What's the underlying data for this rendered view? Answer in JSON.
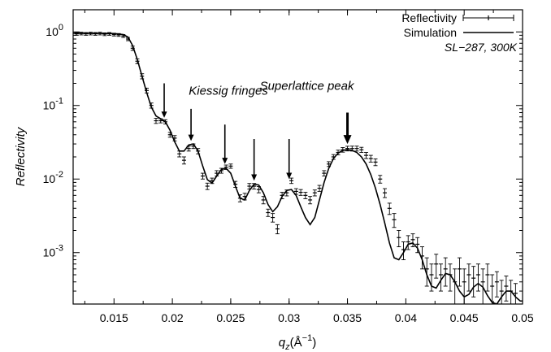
{
  "chart_data": {
    "type": "scatter",
    "xlabel": "q",
    "xlabel_sub": "z",
    "xlabel_unit": "(Å",
    "xlabel_unit_sup": "−1",
    "xlabel_unit_close": ")",
    "ylabel": "Reflectivity",
    "xlim": [
      0.0115,
      0.05
    ],
    "ylim": [
      0.0002,
      2
    ],
    "yscale": "log",
    "x_ticks": [
      "0.015",
      "0.02",
      "0.025",
      "0.03",
      "0.035",
      "0.04",
      "0.045",
      "0.05"
    ],
    "x_tick_values": [
      0.015,
      0.02,
      0.025,
      0.03,
      0.035,
      0.04,
      0.045,
      0.05
    ],
    "y_ticks": [
      {
        "base": "10",
        "exp": "0",
        "value": 1
      },
      {
        "base": "10",
        "exp": "-1",
        "value": 0.1
      },
      {
        "base": "10",
        "exp": "-2",
        "value": 0.01
      },
      {
        "base": "10",
        "exp": "-3",
        "value": 0.001
      }
    ],
    "legend": {
      "placement": "top-right",
      "entries": [
        {
          "label": "Reflectivity",
          "style": "points-errorbars"
        },
        {
          "label": "Simulation",
          "style": "line"
        }
      ],
      "note": "SL−287, 300K"
    },
    "annotations": {
      "superlattice": {
        "text": "Superlattice peak",
        "arrow_x": 0.035,
        "arrow_top": 0.08,
        "arrow_bottom": 0.03
      },
      "kiessig": {
        "text": "Kiessig fringes",
        "arrows": [
          {
            "x": 0.0193,
            "top": 0.2,
            "bottom": 0.068
          },
          {
            "x": 0.0216,
            "top": 0.09,
            "bottom": 0.033
          },
          {
            "x": 0.0245,
            "top": 0.055,
            "bottom": 0.016
          },
          {
            "x": 0.027,
            "top": 0.035,
            "bottom": 0.0095
          },
          {
            "x": 0.03,
            "top": 0.035,
            "bottom": 0.01
          }
        ]
      }
    },
    "series": [
      {
        "name": "Reflectivity",
        "points": [
          [
            0.0118,
            0.94,
            0.04
          ],
          [
            0.0122,
            0.95,
            0.04
          ],
          [
            0.0126,
            0.94,
            0.04
          ],
          [
            0.013,
            0.95,
            0.04
          ],
          [
            0.0134,
            0.94,
            0.04
          ],
          [
            0.0138,
            0.95,
            0.04
          ],
          [
            0.0142,
            0.93,
            0.04
          ],
          [
            0.0146,
            0.94,
            0.04
          ],
          [
            0.015,
            0.92,
            0.04
          ],
          [
            0.0154,
            0.91,
            0.04
          ],
          [
            0.0158,
            0.88,
            0.04
          ],
          [
            0.0162,
            0.8,
            0.04
          ],
          [
            0.0166,
            0.6,
            0.04
          ],
          [
            0.017,
            0.4,
            0.03
          ],
          [
            0.0174,
            0.25,
            0.02
          ],
          [
            0.0178,
            0.16,
            0.012
          ],
          [
            0.0182,
            0.1,
            0.008
          ],
          [
            0.0186,
            0.062,
            0.005
          ],
          [
            0.019,
            0.062,
            0.004
          ],
          [
            0.0194,
            0.06,
            0.004
          ],
          [
            0.0198,
            0.04,
            0.003
          ],
          [
            0.0202,
            0.036,
            0.003
          ],
          [
            0.0206,
            0.022,
            0.002
          ],
          [
            0.021,
            0.018,
            0.002
          ],
          [
            0.0214,
            0.026,
            0.002
          ],
          [
            0.0218,
            0.028,
            0.002
          ],
          [
            0.0222,
            0.024,
            0.002
          ],
          [
            0.0226,
            0.011,
            0.001
          ],
          [
            0.023,
            0.008,
            0.0008
          ],
          [
            0.0234,
            0.0095,
            0.0008
          ],
          [
            0.0238,
            0.012,
            0.001
          ],
          [
            0.0242,
            0.013,
            0.001
          ],
          [
            0.0246,
            0.0145,
            0.001
          ],
          [
            0.025,
            0.015,
            0.001
          ],
          [
            0.0254,
            0.0085,
            0.0008
          ],
          [
            0.0258,
            0.0055,
            0.0006
          ],
          [
            0.0262,
            0.0058,
            0.0006
          ],
          [
            0.0266,
            0.008,
            0.0007
          ],
          [
            0.027,
            0.008,
            0.0007
          ],
          [
            0.0274,
            0.0072,
            0.0007
          ],
          [
            0.0278,
            0.0052,
            0.0006
          ],
          [
            0.0282,
            0.0035,
            0.0004
          ],
          [
            0.0286,
            0.003,
            0.0004
          ],
          [
            0.029,
            0.0021,
            0.0003
          ],
          [
            0.0294,
            0.006,
            0.0006
          ],
          [
            0.0298,
            0.0065,
            0.0006
          ],
          [
            0.0302,
            0.0095,
            0.0008
          ],
          [
            0.0306,
            0.0068,
            0.0006
          ],
          [
            0.031,
            0.0066,
            0.0006
          ],
          [
            0.0314,
            0.006,
            0.0006
          ],
          [
            0.0318,
            0.0052,
            0.0006
          ],
          [
            0.0322,
            0.0065,
            0.0006
          ],
          [
            0.0326,
            0.0075,
            0.0007
          ],
          [
            0.033,
            0.012,
            0.001
          ],
          [
            0.0334,
            0.016,
            0.0012
          ],
          [
            0.0338,
            0.02,
            0.0015
          ],
          [
            0.0342,
            0.023,
            0.0017
          ],
          [
            0.0346,
            0.025,
            0.0018
          ],
          [
            0.035,
            0.026,
            0.0019
          ],
          [
            0.0354,
            0.026,
            0.002
          ],
          [
            0.0358,
            0.026,
            0.002
          ],
          [
            0.0362,
            0.025,
            0.002
          ],
          [
            0.0366,
            0.021,
            0.002
          ],
          [
            0.037,
            0.019,
            0.002
          ],
          [
            0.0374,
            0.017,
            0.0018
          ],
          [
            0.0378,
            0.01,
            0.0012
          ],
          [
            0.0382,
            0.0065,
            0.0009
          ],
          [
            0.0386,
            0.004,
            0.0007
          ],
          [
            0.039,
            0.0028,
            0.0006
          ],
          [
            0.0394,
            0.0016,
            0.0004
          ],
          [
            0.0398,
            0.0011,
            0.0003
          ],
          [
            0.0402,
            0.0014,
            0.0003
          ],
          [
            0.0406,
            0.0015,
            0.0003
          ],
          [
            0.041,
            0.0013,
            0.0003
          ],
          [
            0.0414,
            0.0009,
            0.0003
          ],
          [
            0.0418,
            0.0006,
            0.00025
          ],
          [
            0.0422,
            0.0005,
            0.0002
          ],
          [
            0.0426,
            0.0007,
            0.00025
          ],
          [
            0.043,
            0.0005,
            0.0002
          ],
          [
            0.0434,
            0.0006,
            0.00025
          ],
          [
            0.0438,
            0.0005,
            0.0002
          ],
          [
            0.0442,
            0.0004,
            0.0002
          ],
          [
            0.0446,
            0.0006,
            0.00025
          ],
          [
            0.045,
            0.0004,
            0.0002
          ],
          [
            0.0454,
            0.0005,
            0.0002
          ],
          [
            0.0458,
            0.00045,
            0.0002
          ],
          [
            0.0462,
            0.0005,
            0.0002
          ],
          [
            0.0466,
            0.0004,
            0.0002
          ],
          [
            0.047,
            0.0005,
            0.0002
          ],
          [
            0.0474,
            0.00035,
            0.00015
          ],
          [
            0.0478,
            0.0004,
            0.00015
          ],
          [
            0.0482,
            0.0003,
            0.00012
          ],
          [
            0.0486,
            0.00035,
            0.00013
          ],
          [
            0.049,
            0.0003,
            0.00012
          ],
          [
            0.0494,
            0.00028,
            0.0001
          ]
        ]
      },
      {
        "name": "Simulation",
        "points": [
          [
            0.0115,
            0.96
          ],
          [
            0.015,
            0.95
          ],
          [
            0.0158,
            0.92
          ],
          [
            0.0162,
            0.85
          ],
          [
            0.0166,
            0.65
          ],
          [
            0.017,
            0.42
          ],
          [
            0.0174,
            0.25
          ],
          [
            0.0178,
            0.15
          ],
          [
            0.0182,
            0.095
          ],
          [
            0.0186,
            0.072
          ],
          [
            0.019,
            0.066
          ],
          [
            0.0194,
            0.06
          ],
          [
            0.0198,
            0.046
          ],
          [
            0.0202,
            0.032
          ],
          [
            0.0206,
            0.024
          ],
          [
            0.021,
            0.024
          ],
          [
            0.0214,
            0.029
          ],
          [
            0.0218,
            0.03
          ],
          [
            0.0222,
            0.024
          ],
          [
            0.0226,
            0.015
          ],
          [
            0.023,
            0.0098
          ],
          [
            0.0234,
            0.0088
          ],
          [
            0.0238,
            0.011
          ],
          [
            0.0242,
            0.0135
          ],
          [
            0.0246,
            0.014
          ],
          [
            0.025,
            0.012
          ],
          [
            0.0254,
            0.008
          ],
          [
            0.0258,
            0.0055
          ],
          [
            0.0262,
            0.0052
          ],
          [
            0.0266,
            0.007
          ],
          [
            0.027,
            0.0085
          ],
          [
            0.0274,
            0.0083
          ],
          [
            0.0278,
            0.0065
          ],
          [
            0.0282,
            0.0045
          ],
          [
            0.0286,
            0.0036
          ],
          [
            0.029,
            0.0042
          ],
          [
            0.0294,
            0.0058
          ],
          [
            0.0298,
            0.007
          ],
          [
            0.0302,
            0.0072
          ],
          [
            0.0306,
            0.006
          ],
          [
            0.031,
            0.0042
          ],
          [
            0.0314,
            0.003
          ],
          [
            0.0318,
            0.0024
          ],
          [
            0.0322,
            0.003
          ],
          [
            0.0326,
            0.0052
          ],
          [
            0.033,
            0.009
          ],
          [
            0.0334,
            0.014
          ],
          [
            0.0338,
            0.019
          ],
          [
            0.0342,
            0.0225
          ],
          [
            0.0346,
            0.0245
          ],
          [
            0.035,
            0.025
          ],
          [
            0.0354,
            0.0245
          ],
          [
            0.0358,
            0.023
          ],
          [
            0.0362,
            0.02
          ],
          [
            0.0366,
            0.016
          ],
          [
            0.037,
            0.0115
          ],
          [
            0.0374,
            0.0075
          ],
          [
            0.0378,
            0.0045
          ],
          [
            0.0382,
            0.0025
          ],
          [
            0.0386,
            0.00135
          ],
          [
            0.039,
            0.00085
          ],
          [
            0.0394,
            0.0008
          ],
          [
            0.0398,
            0.001
          ],
          [
            0.0402,
            0.0013
          ],
          [
            0.0406,
            0.00135
          ],
          [
            0.041,
            0.00115
          ],
          [
            0.0414,
            0.0008
          ],
          [
            0.0418,
            0.0005
          ],
          [
            0.0422,
            0.00035
          ],
          [
            0.0426,
            0.00033
          ],
          [
            0.043,
            0.00042
          ],
          [
            0.0434,
            0.00052
          ],
          [
            0.0438,
            0.0005
          ],
          [
            0.0442,
            0.0004
          ],
          [
            0.0446,
            0.0003
          ],
          [
            0.045,
            0.00025
          ],
          [
            0.0454,
            0.00027
          ],
          [
            0.0458,
            0.00034
          ],
          [
            0.0462,
            0.00038
          ],
          [
            0.0466,
            0.00034
          ],
          [
            0.047,
            0.00026
          ],
          [
            0.0474,
            0.00021
          ],
          [
            0.0478,
            0.0002
          ],
          [
            0.0482,
            0.00025
          ],
          [
            0.0486,
            0.0003
          ],
          [
            0.049,
            0.0003
          ],
          [
            0.0494,
            0.00025
          ],
          [
            0.0498,
            0.00022
          ],
          [
            0.05,
            0.00022
          ]
        ]
      }
    ]
  }
}
